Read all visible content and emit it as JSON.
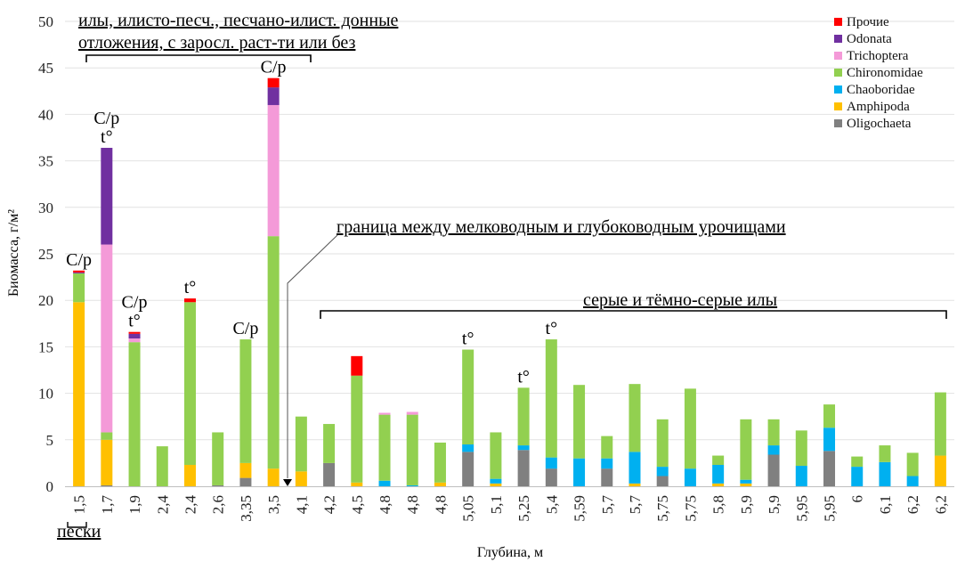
{
  "chart_data": {
    "type": "bar",
    "stacked": true,
    "ylabel": "Биомасса, г/м²",
    "xlabel": "Глубина, м",
    "ylim": [
      0,
      50
    ],
    "yticks": [
      "0",
      "5",
      "10",
      "15",
      "20",
      "25",
      "30",
      "35",
      "40",
      "45",
      "50"
    ],
    "categories": [
      "1,5",
      "1,7",
      "1,9",
      "2,4",
      "2,4",
      "2,6",
      "3,35",
      "3,5",
      "4,1",
      "4,2",
      "4,5",
      "4,8",
      "4,8",
      "4,8",
      "5,05",
      "5,1",
      "5,25",
      "5,4",
      "5,59",
      "5,7",
      "5,7",
      "5,75",
      "5,75",
      "5,8",
      "5,9",
      "5,9",
      "5,95",
      "5,95",
      "6",
      "6,1",
      "6,2",
      "6,2"
    ],
    "series": [
      {
        "name": "Oligochaeta",
        "color": "#808080",
        "values": [
          0,
          0.1,
          0,
          0,
          0,
          0.1,
          0.9,
          0,
          0,
          2.5,
          0,
          0,
          0,
          0,
          3.7,
          0,
          3.9,
          1.9,
          0,
          1.9,
          0,
          1.1,
          0,
          0,
          0,
          3.4,
          0,
          3.8,
          0,
          0,
          0,
          0
        ]
      },
      {
        "name": "Amphipoda",
        "color": "#FFC000",
        "values": [
          19.8,
          4.9,
          0,
          0,
          2.3,
          0,
          1.6,
          1.9,
          1.6,
          0,
          0.4,
          0,
          0,
          0.4,
          0,
          0.3,
          0,
          0,
          0,
          0,
          0.3,
          0,
          0,
          0.3,
          0.3,
          0,
          0,
          0,
          0,
          0,
          0,
          3.3
        ]
      },
      {
        "name": "Chaoboridae",
        "color": "#00B0F0",
        "values": [
          0,
          0,
          0,
          0,
          0,
          0,
          0,
          0,
          0,
          0,
          0,
          0.6,
          0.1,
          0,
          0.8,
          0.5,
          0.5,
          1.2,
          3.0,
          1.1,
          3.4,
          1.0,
          1.9,
          2.0,
          0.4,
          1.0,
          2.2,
          2.5,
          2.1,
          2.6,
          1.1,
          0
        ]
      },
      {
        "name": "Chironomidae",
        "color": "#92D050",
        "values": [
          3.1,
          0.8,
          15.5,
          4.3,
          17.5,
          5.7,
          13.3,
          25.0,
          5.9,
          4.2,
          11.5,
          7.1,
          7.6,
          4.3,
          10.2,
          5.0,
          6.2,
          12.7,
          7.9,
          2.4,
          7.3,
          5.1,
          8.6,
          1.0,
          6.5,
          2.8,
          3.8,
          2.5,
          1.1,
          1.8,
          2.5,
          6.8
        ]
      },
      {
        "name": "Trichoptera",
        "color": "#F49AD8",
        "values": [
          0,
          20.2,
          0.4,
          0,
          0,
          0,
          0,
          14.1,
          0,
          0,
          0,
          0.2,
          0.3,
          0,
          0,
          0,
          0,
          0,
          0,
          0,
          0,
          0,
          0,
          0,
          0,
          0,
          0,
          0,
          0,
          0,
          0,
          0
        ]
      },
      {
        "name": "Odonata",
        "color": "#7030A0",
        "values": [
          0.1,
          10.4,
          0.5,
          0,
          0,
          0,
          0,
          1.9,
          0,
          0,
          0,
          0,
          0,
          0,
          0,
          0,
          0,
          0,
          0,
          0,
          0,
          0,
          0,
          0,
          0,
          0,
          0,
          0,
          0,
          0,
          0,
          0
        ]
      },
      {
        "name": "Прочие",
        "color": "#FF0000",
        "values": [
          0.2,
          0,
          0.2,
          0,
          0.4,
          0,
          0,
          1.0,
          0,
          0,
          2.1,
          0,
          0,
          0,
          0,
          0,
          0,
          0,
          0,
          0,
          0,
          0,
          0,
          0,
          0,
          0,
          0,
          0,
          0,
          0,
          0,
          0
        ]
      }
    ],
    "legend_position": "top-right",
    "bar_annotations": [
      {
        "bar": 0,
        "lines": [
          "C/p"
        ]
      },
      {
        "bar": 1,
        "lines": [
          "C/p",
          "t°"
        ]
      },
      {
        "bar": 2,
        "lines": [
          "C/p",
          "t°"
        ]
      },
      {
        "bar": 4,
        "lines": [
          "t°"
        ]
      },
      {
        "bar": 6,
        "lines": [
          "C/p"
        ]
      },
      {
        "bar": 7,
        "lines": [
          "C/p"
        ]
      },
      {
        "bar": 14,
        "lines": [
          "t°"
        ]
      },
      {
        "bar": 16,
        "lines": [
          "t°"
        ]
      },
      {
        "bar": 17,
        "lines": [
          "t°"
        ]
      }
    ],
    "notes": {
      "silts_line1": "илы, илисто-песч., песчано-илист. донные",
      "silts_line2": "отложения, с заросл. раст-ти или без",
      "boundary": "граница между мелководным и глубоководным урочищами",
      "grey_silts": "серые и тёмно-серые илы",
      "sands": "пески"
    }
  }
}
